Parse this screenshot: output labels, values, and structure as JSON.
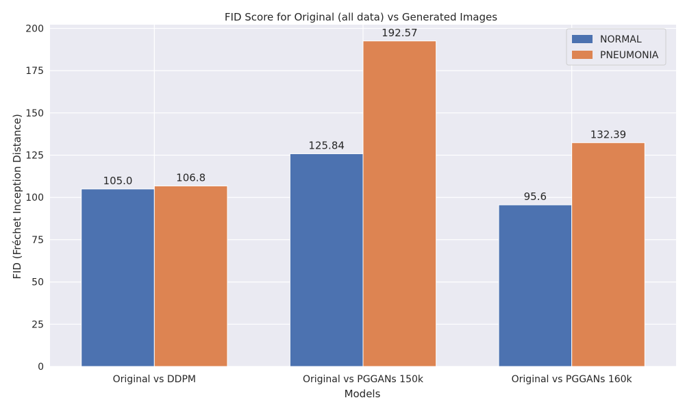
{
  "chart_data": {
    "type": "bar",
    "title": "FID Score for Original (all data) vs Generated Images",
    "xlabel": "Models",
    "ylabel": "FID (Fréchet Inception Distance)",
    "categories": [
      "Original vs DDPM",
      "Original vs PGGANs 150k",
      "Original vs PGGANs 160k"
    ],
    "series": [
      {
        "name": "NORMAL",
        "values": [
          105.0,
          125.84,
          95.6
        ],
        "labels": [
          "105.0",
          "125.84",
          "95.6"
        ],
        "color": "#4c72b0"
      },
      {
        "name": "PNEUMONIA",
        "values": [
          106.8,
          192.57,
          132.39
        ],
        "labels": [
          "106.8",
          "192.57",
          "132.39"
        ],
        "color": "#dd8452"
      }
    ],
    "ylim": [
      0,
      202.2
    ],
    "yticks": [
      0,
      25,
      50,
      75,
      100,
      125,
      150,
      175,
      200
    ],
    "grid": true,
    "legend_position": "top-right",
    "background_color": "#eaeaf2",
    "grid_color": "#ffffff"
  }
}
